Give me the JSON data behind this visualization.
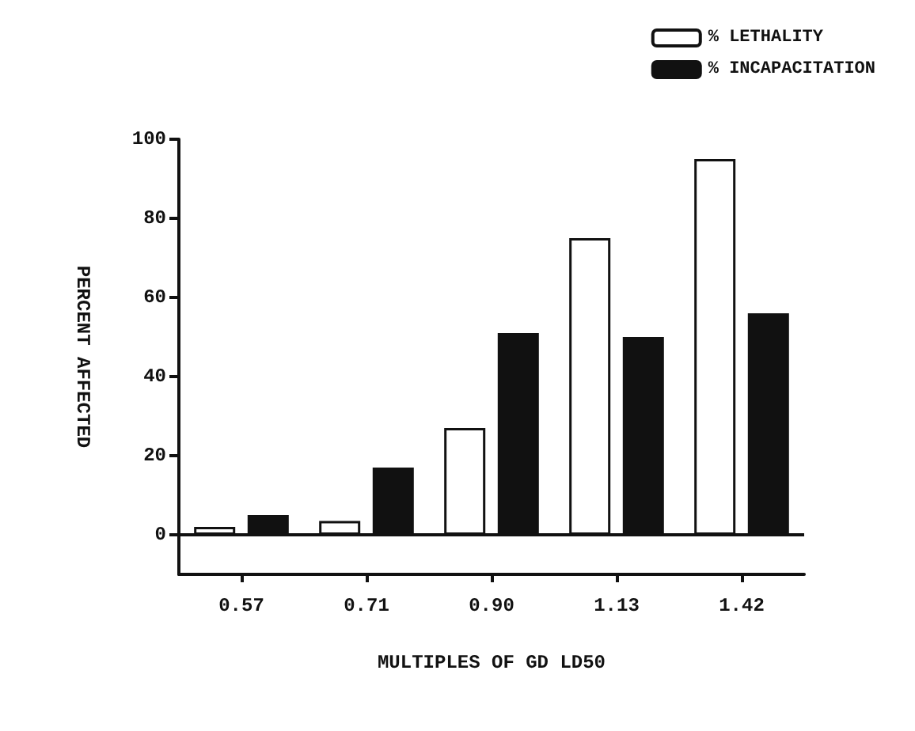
{
  "chart_data": {
    "type": "bar",
    "xlabel": "MULTIPLES OF GD LD50",
    "ylabel": "PERCENT AFFECTED",
    "categories": [
      "0.57",
      "0.71",
      "0.90",
      "1.13",
      "1.42"
    ],
    "series": [
      {
        "name": "% LETHALITY",
        "color": "#ffffff",
        "values": [
          2,
          3.5,
          27,
          75,
          95
        ]
      },
      {
        "name": "% INCAPACITATION",
        "color": "#111111",
        "values": [
          5,
          17,
          51,
          50,
          56
        ]
      }
    ],
    "ylim": [
      -10,
      100
    ],
    "yticks": [
      0,
      20,
      40,
      60,
      80,
      100
    ],
    "ref_lines": [
      {
        "axis": "y",
        "value": 0,
        "color": "#111111"
      }
    ],
    "grid": false,
    "legend": "top right"
  }
}
